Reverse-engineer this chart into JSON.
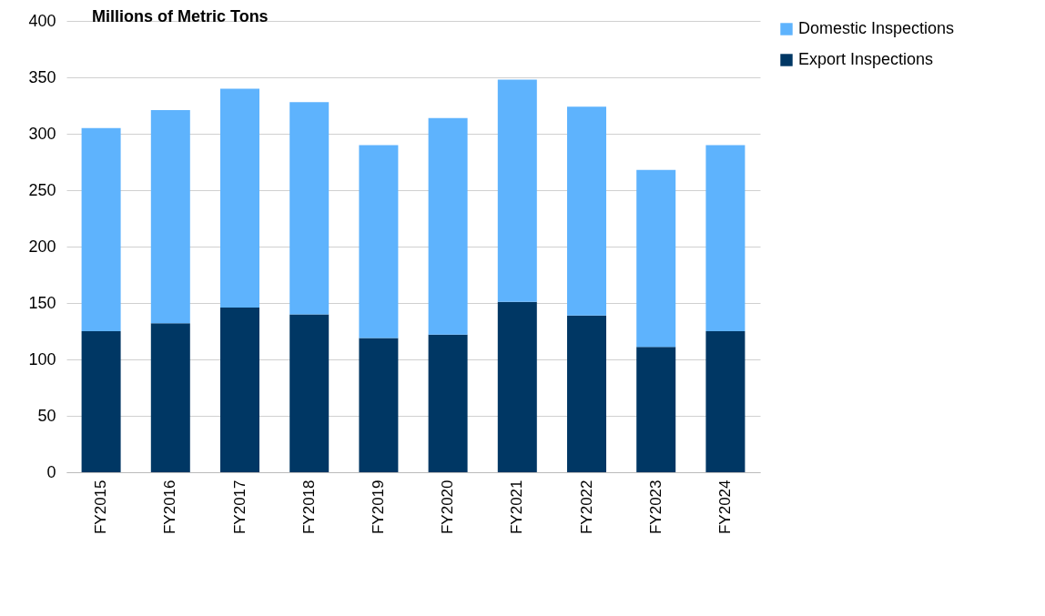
{
  "chart_data": {
    "type": "bar",
    "title": "Millions of Metric Tons",
    "stacked": true,
    "categories": [
      "FY2015",
      "FY2016",
      "FY2017",
      "FY2018",
      "FY2019",
      "FY2020",
      "FY2021",
      "FY2022",
      "FY2023",
      "FY2024"
    ],
    "series": [
      {
        "name": "Export Inspections",
        "color": "#003764",
        "values": [
          125,
          132,
          146,
          140,
          119,
          122,
          151,
          139,
          111,
          125
        ]
      },
      {
        "name": "Domestic Inspections",
        "color": "#5eb3fd",
        "values": [
          180,
          189,
          194,
          188,
          171,
          192,
          197,
          185,
          157,
          165
        ]
      }
    ],
    "ylim": [
      0,
      400
    ],
    "yticks": [
      0,
      50,
      100,
      150,
      200,
      250,
      300,
      350,
      400
    ],
    "grid": "y",
    "legend": "right"
  }
}
